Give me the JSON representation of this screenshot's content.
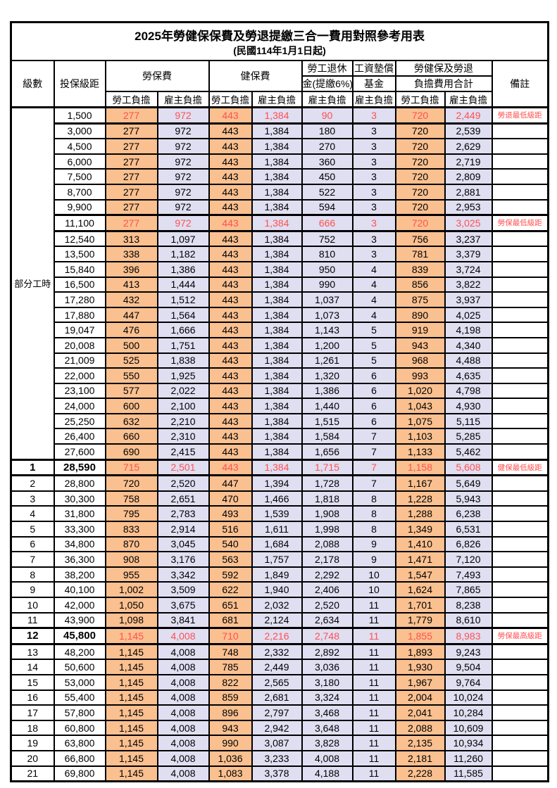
{
  "title": "2025年勞健保保費及勞退提繳三合一費用對照參考用表",
  "subtitle": "(民國114年1月1日起)",
  "colors": {
    "employee_bg": "#FAC090",
    "employer_bg": "#E0DEF1",
    "highlight_text": "#FF5050",
    "border": "#000000"
  },
  "header": {
    "level": "級數",
    "bracket": "投保級距",
    "labor_insurance": "勞保費",
    "health_insurance": "健保費",
    "pension_line1": "勞工退休",
    "pension_line2": "金(提繳6%)",
    "wage_fund_line1": "工資墊償",
    "wage_fund_line2": "基金",
    "total_line1": "勞健保及勞退",
    "total_line2": "負擔費用合計",
    "employee": "勞工負擔",
    "employer": "雇主負擔",
    "remark": "備註"
  },
  "part_time": {
    "label": "部分工時",
    "row_span": 23
  },
  "rows": [
    {
      "level": "",
      "cells": [
        "1,500",
        "277",
        "972",
        "443",
        "1,384",
        "90",
        "3",
        "720",
        "2,449"
      ],
      "remark": "勞退最低級距",
      "highlight": true,
      "emphasis": false
    },
    {
      "level": "",
      "cells": [
        "3,000",
        "277",
        "972",
        "443",
        "1,384",
        "180",
        "3",
        "720",
        "2,539"
      ],
      "remark": "",
      "highlight": false,
      "emphasis": false
    },
    {
      "level": "",
      "cells": [
        "4,500",
        "277",
        "972",
        "443",
        "1,384",
        "270",
        "3",
        "720",
        "2,629"
      ],
      "remark": "",
      "highlight": false,
      "emphasis": false
    },
    {
      "level": "",
      "cells": [
        "6,000",
        "277",
        "972",
        "443",
        "1,384",
        "360",
        "3",
        "720",
        "2,719"
      ],
      "remark": "",
      "highlight": false,
      "emphasis": false
    },
    {
      "level": "",
      "cells": [
        "7,500",
        "277",
        "972",
        "443",
        "1,384",
        "450",
        "3",
        "720",
        "2,809"
      ],
      "remark": "",
      "highlight": false,
      "emphasis": false
    },
    {
      "level": "",
      "cells": [
        "8,700",
        "277",
        "972",
        "443",
        "1,384",
        "522",
        "3",
        "720",
        "2,881"
      ],
      "remark": "",
      "highlight": false,
      "emphasis": false
    },
    {
      "level": "",
      "cells": [
        "9,900",
        "277",
        "972",
        "443",
        "1,384",
        "594",
        "3",
        "720",
        "2,953"
      ],
      "remark": "",
      "highlight": false,
      "emphasis": false
    },
    {
      "level": "",
      "cells": [
        "11,100",
        "277",
        "972",
        "443",
        "1,384",
        "666",
        "3",
        "720",
        "3,025"
      ],
      "remark": "勞保最低級距",
      "highlight": true,
      "emphasis": false
    },
    {
      "level": "",
      "cells": [
        "12,540",
        "313",
        "1,097",
        "443",
        "1,384",
        "752",
        "3",
        "756",
        "3,237"
      ],
      "remark": "",
      "highlight": false,
      "emphasis": false
    },
    {
      "level": "",
      "cells": [
        "13,500",
        "338",
        "1,182",
        "443",
        "1,384",
        "810",
        "3",
        "781",
        "3,379"
      ],
      "remark": "",
      "highlight": false,
      "emphasis": false
    },
    {
      "level": "",
      "cells": [
        "15,840",
        "396",
        "1,386",
        "443",
        "1,384",
        "950",
        "4",
        "839",
        "3,724"
      ],
      "remark": "",
      "highlight": false,
      "emphasis": false
    },
    {
      "level": "",
      "cells": [
        "16,500",
        "413",
        "1,444",
        "443",
        "1,384",
        "990",
        "4",
        "856",
        "3,822"
      ],
      "remark": "",
      "highlight": false,
      "emphasis": false
    },
    {
      "level": "",
      "cells": [
        "17,280",
        "432",
        "1,512",
        "443",
        "1,384",
        "1,037",
        "4",
        "875",
        "3,937"
      ],
      "remark": "",
      "highlight": false,
      "emphasis": false
    },
    {
      "level": "",
      "cells": [
        "17,880",
        "447",
        "1,564",
        "443",
        "1,384",
        "1,073",
        "4",
        "890",
        "4,025"
      ],
      "remark": "",
      "highlight": false,
      "emphasis": false
    },
    {
      "level": "",
      "cells": [
        "19,047",
        "476",
        "1,666",
        "443",
        "1,384",
        "1,143",
        "5",
        "919",
        "4,198"
      ],
      "remark": "",
      "highlight": false,
      "emphasis": false
    },
    {
      "level": "",
      "cells": [
        "20,008",
        "500",
        "1,751",
        "443",
        "1,384",
        "1,200",
        "5",
        "943",
        "4,340"
      ],
      "remark": "",
      "highlight": false,
      "emphasis": false
    },
    {
      "level": "",
      "cells": [
        "21,009",
        "525",
        "1,838",
        "443",
        "1,384",
        "1,261",
        "5",
        "968",
        "4,488"
      ],
      "remark": "",
      "highlight": false,
      "emphasis": false
    },
    {
      "level": "",
      "cells": [
        "22,000",
        "550",
        "1,925",
        "443",
        "1,384",
        "1,320",
        "6",
        "993",
        "4,635"
      ],
      "remark": "",
      "highlight": false,
      "emphasis": false
    },
    {
      "level": "",
      "cells": [
        "23,100",
        "577",
        "2,022",
        "443",
        "1,384",
        "1,386",
        "6",
        "1,020",
        "4,798"
      ],
      "remark": "",
      "highlight": false,
      "emphasis": false
    },
    {
      "level": "",
      "cells": [
        "24,000",
        "600",
        "2,100",
        "443",
        "1,384",
        "1,440",
        "6",
        "1,043",
        "4,930"
      ],
      "remark": "",
      "highlight": false,
      "emphasis": false
    },
    {
      "level": "",
      "cells": [
        "25,250",
        "632",
        "2,210",
        "443",
        "1,384",
        "1,515",
        "6",
        "1,075",
        "5,115"
      ],
      "remark": "",
      "highlight": false,
      "emphasis": false
    },
    {
      "level": "",
      "cells": [
        "26,400",
        "660",
        "2,310",
        "443",
        "1,384",
        "1,584",
        "7",
        "1,103",
        "5,285"
      ],
      "remark": "",
      "highlight": false,
      "emphasis": false
    },
    {
      "level": "",
      "cells": [
        "27,600",
        "690",
        "2,415",
        "443",
        "1,384",
        "1,656",
        "7",
        "1,133",
        "5,462"
      ],
      "remark": "",
      "highlight": false,
      "emphasis": false
    },
    {
      "level": "1",
      "cells": [
        "28,590",
        "715",
        "2,501",
        "443",
        "1,384",
        "1,715",
        "7",
        "1,158",
        "5,608"
      ],
      "remark": "健保最低級距",
      "highlight": true,
      "emphasis": true
    },
    {
      "level": "2",
      "cells": [
        "28,800",
        "720",
        "2,520",
        "447",
        "1,394",
        "1,728",
        "7",
        "1,167",
        "5,649"
      ],
      "remark": "",
      "highlight": false,
      "emphasis": false
    },
    {
      "level": "3",
      "cells": [
        "30,300",
        "758",
        "2,651",
        "470",
        "1,466",
        "1,818",
        "8",
        "1,228",
        "5,943"
      ],
      "remark": "",
      "highlight": false,
      "emphasis": false
    },
    {
      "level": "4",
      "cells": [
        "31,800",
        "795",
        "2,783",
        "493",
        "1,539",
        "1,908",
        "8",
        "1,288",
        "6,238"
      ],
      "remark": "",
      "highlight": false,
      "emphasis": false
    },
    {
      "level": "5",
      "cells": [
        "33,300",
        "833",
        "2,914",
        "516",
        "1,611",
        "1,998",
        "8",
        "1,349",
        "6,531"
      ],
      "remark": "",
      "highlight": false,
      "emphasis": false
    },
    {
      "level": "6",
      "cells": [
        "34,800",
        "870",
        "3,045",
        "540",
        "1,684",
        "2,088",
        "9",
        "1,410",
        "6,826"
      ],
      "remark": "",
      "highlight": false,
      "emphasis": false
    },
    {
      "level": "7",
      "cells": [
        "36,300",
        "908",
        "3,176",
        "563",
        "1,757",
        "2,178",
        "9",
        "1,471",
        "7,120"
      ],
      "remark": "",
      "highlight": false,
      "emphasis": false
    },
    {
      "level": "8",
      "cells": [
        "38,200",
        "955",
        "3,342",
        "592",
        "1,849",
        "2,292",
        "10",
        "1,547",
        "7,493"
      ],
      "remark": "",
      "highlight": false,
      "emphasis": false
    },
    {
      "level": "9",
      "cells": [
        "40,100",
        "1,002",
        "3,509",
        "622",
        "1,940",
        "2,406",
        "10",
        "1,624",
        "7,865"
      ],
      "remark": "",
      "highlight": false,
      "emphasis": false
    },
    {
      "level": "10",
      "cells": [
        "42,000",
        "1,050",
        "3,675",
        "651",
        "2,032",
        "2,520",
        "11",
        "1,701",
        "8,238"
      ],
      "remark": "",
      "highlight": false,
      "emphasis": false
    },
    {
      "level": "11",
      "cells": [
        "43,900",
        "1,098",
        "3,841",
        "681",
        "2,124",
        "2,634",
        "11",
        "1,779",
        "8,610"
      ],
      "remark": "",
      "highlight": false,
      "emphasis": false
    },
    {
      "level": "12",
      "cells": [
        "45,800",
        "1,145",
        "4,008",
        "710",
        "2,216",
        "2,748",
        "11",
        "1,855",
        "8,983"
      ],
      "remark": "勞保最高級距",
      "highlight": true,
      "emphasis": true
    },
    {
      "level": "13",
      "cells": [
        "48,200",
        "1,145",
        "4,008",
        "748",
        "2,332",
        "2,892",
        "11",
        "1,893",
        "9,243"
      ],
      "remark": "",
      "highlight": false,
      "emphasis": false
    },
    {
      "level": "14",
      "cells": [
        "50,600",
        "1,145",
        "4,008",
        "785",
        "2,449",
        "3,036",
        "11",
        "1,930",
        "9,504"
      ],
      "remark": "",
      "highlight": false,
      "emphasis": false
    },
    {
      "level": "15",
      "cells": [
        "53,000",
        "1,145",
        "4,008",
        "822",
        "2,565",
        "3,180",
        "11",
        "1,967",
        "9,764"
      ],
      "remark": "",
      "highlight": false,
      "emphasis": false
    },
    {
      "level": "16",
      "cells": [
        "55,400",
        "1,145",
        "4,008",
        "859",
        "2,681",
        "3,324",
        "11",
        "2,004",
        "10,024"
      ],
      "remark": "",
      "highlight": false,
      "emphasis": false
    },
    {
      "level": "17",
      "cells": [
        "57,800",
        "1,145",
        "4,008",
        "896",
        "2,797",
        "3,468",
        "11",
        "2,041",
        "10,284"
      ],
      "remark": "",
      "highlight": false,
      "emphasis": false
    },
    {
      "level": "18",
      "cells": [
        "60,800",
        "1,145",
        "4,008",
        "943",
        "2,942",
        "3,648",
        "11",
        "2,088",
        "10,609"
      ],
      "remark": "",
      "highlight": false,
      "emphasis": false
    },
    {
      "level": "19",
      "cells": [
        "63,800",
        "1,145",
        "4,008",
        "990",
        "3,087",
        "3,828",
        "11",
        "2,135",
        "10,934"
      ],
      "remark": "",
      "highlight": false,
      "emphasis": false
    },
    {
      "level": "20",
      "cells": [
        "66,800",
        "1,145",
        "4,008",
        "1,036",
        "3,233",
        "4,008",
        "11",
        "2,181",
        "11,260"
      ],
      "remark": "",
      "highlight": false,
      "emphasis": false
    },
    {
      "level": "21",
      "cells": [
        "69,800",
        "1,145",
        "4,008",
        "1,083",
        "3,378",
        "4,188",
        "11",
        "2,228",
        "11,585"
      ],
      "remark": "",
      "highlight": false,
      "emphasis": false
    }
  ]
}
